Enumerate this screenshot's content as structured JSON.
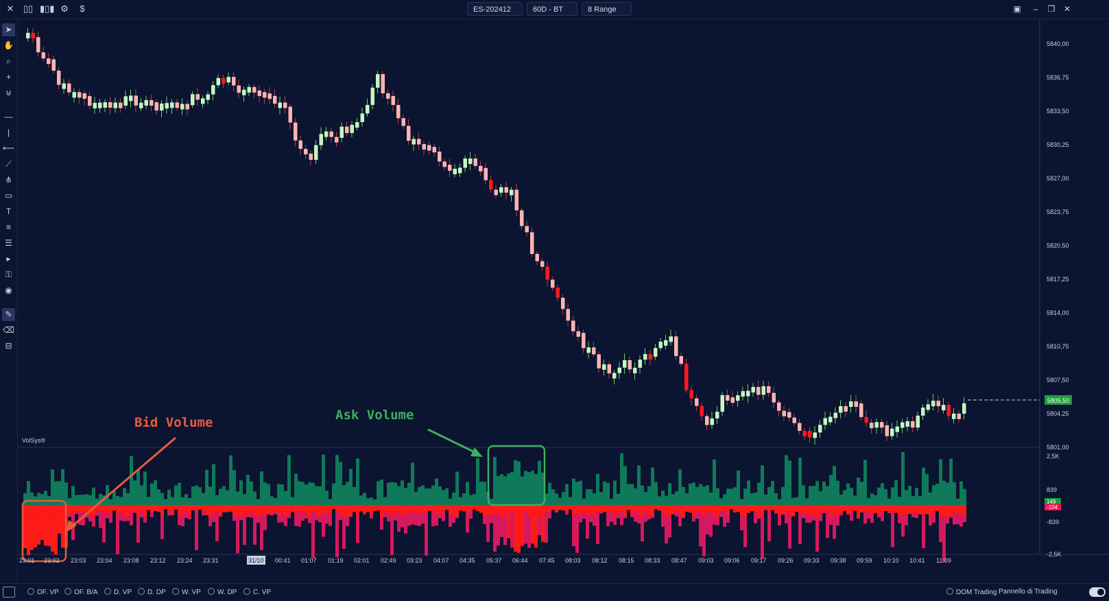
{
  "toolbar": {
    "symbol": "ES-202412",
    "timeframe": "60D - BT",
    "range": "8 Range",
    "icons": [
      "close-icon",
      "candles-icon",
      "bar-chart-icon",
      "gear-icon",
      "dollar-icon"
    ],
    "dollar": "$"
  },
  "window_controls": [
    "layout-icon",
    "minimize-icon",
    "restore-icon",
    "close-icon"
  ],
  "drawing_tools": [
    "pointer-icon",
    "hand-icon",
    "zoom-icon",
    "crosshair-icon",
    "magnet-icon",
    "horizontal-line-icon",
    "vertical-line-icon",
    "ray-icon",
    "trend-line-icon",
    "pitchfork-icon",
    "rectangle-icon",
    "text-icon",
    "fib-icon",
    "channel-icon",
    "play-icon",
    "lock-settings-icon",
    "visibility-icon",
    "brush-icon",
    "eraser-icon",
    "delete-all-icon"
  ],
  "chart": {
    "price_axis": [
      "5840,00",
      "5836,75",
      "5833,50",
      "5830,25",
      "5827,00",
      "5823,75",
      "5820,50",
      "5817,25",
      "5814,00",
      "5810,75",
      "5807,50",
      "5804,25",
      "5801,00"
    ],
    "last_price": "5805,50",
    "indicator_label": "VolSys®",
    "volume_axis": [
      "2,5K",
      "839",
      "-839",
      "-2,5K"
    ],
    "volume_markers": [
      "149",
      "-104"
    ],
    "time_axis": [
      "23:01",
      "23:02",
      "23:03",
      "23:04",
      "23:08",
      "23:12",
      "23:24",
      "23:31",
      "31/10",
      "00:41",
      "01:07",
      "01:19",
      "02:01",
      "02:49",
      "03:23",
      "04:07",
      "04:35",
      "05:37",
      "06:44",
      "07:45",
      "08:03",
      "08:12",
      "08:15",
      "08:33",
      "08:47",
      "09:03",
      "09:06",
      "09:17",
      "09:26",
      "09:33",
      "09:38",
      "09:59",
      "10:10",
      "10:41",
      "11:09"
    ],
    "annotations": {
      "bid": "Bid Volume",
      "ask": "Ask Volume"
    },
    "colors": {
      "up": "#c5f5c0",
      "down": "#ffb3b3",
      "down_strong": "#ff1a1a",
      "ask": "#0e7a5a",
      "bid_strong": "#ff1a1a",
      "bid_weak": "#d6195e",
      "bid_annotation": "#e85c3c",
      "ask_annotation": "#3fae5d"
    }
  },
  "bottom_tabs": [
    "OF. VP",
    "OF. B/A",
    "D. VP",
    "D. DP",
    "W. VP",
    "W. DP",
    "C. VP"
  ],
  "dom_trading": "DOM Trading",
  "pannello": "Pannello di Trading"
}
